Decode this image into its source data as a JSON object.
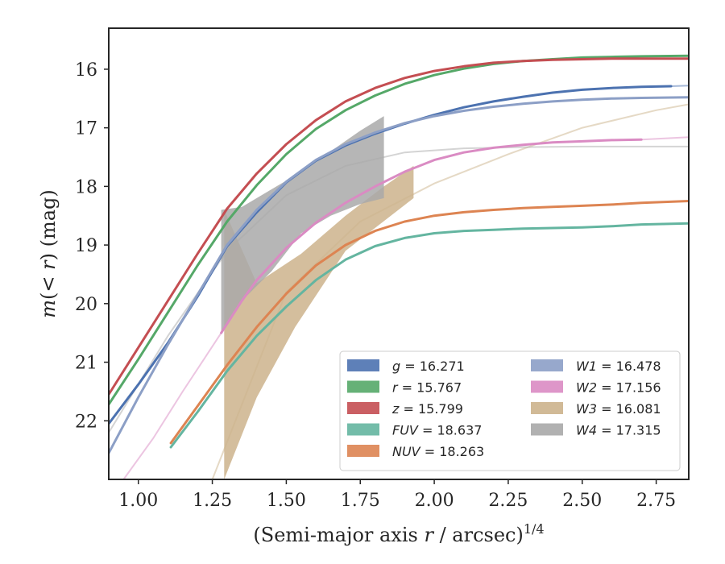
{
  "chart_data": {
    "type": "line",
    "xlabel": "(Semi-major axis r / arcsec)^1/4",
    "xlabel_parts": {
      "main": "(Semi-major axis ",
      "var": "r",
      "rest": " / arcsec)",
      "sup": "1/4"
    },
    "ylabel": "m(< r) (mag)",
    "ylabel_parts": {
      "var": "m",
      "mid": "(< ",
      "var2": "r",
      "rest": ") (mag)"
    },
    "xlim": [
      0.9,
      2.86
    ],
    "ylim": [
      23.0,
      15.3
    ],
    "y_inverted": true,
    "xticks": [
      1.0,
      1.25,
      1.5,
      1.75,
      2.0,
      2.25,
      2.5,
      2.75
    ],
    "xtick_labels": [
      "1.00",
      "1.25",
      "1.50",
      "1.75",
      "2.00",
      "2.25",
      "2.50",
      "2.75"
    ],
    "yticks": [
      16,
      17,
      18,
      19,
      20,
      21,
      22
    ],
    "ytick_labels": [
      "16",
      "17",
      "18",
      "19",
      "20",
      "21",
      "22"
    ],
    "grid": false,
    "legend_position": "lower-right",
    "series": [
      {
        "name": "g = 16.271",
        "label_var": "g",
        "label_val": " = 16.271",
        "color": "#4c72b0",
        "x": [
          0.9,
          1.0,
          1.1,
          1.2,
          1.3,
          1.4,
          1.5,
          1.6,
          1.7,
          1.8,
          1.9,
          2.0,
          2.1,
          2.2,
          2.3,
          2.4,
          2.5,
          2.6,
          2.7,
          2.8
        ],
        "y": [
          22.05,
          21.38,
          20.67,
          19.88,
          19.02,
          18.44,
          17.93,
          17.56,
          17.3,
          17.1,
          16.93,
          16.78,
          16.65,
          16.55,
          16.47,
          16.4,
          16.35,
          16.32,
          16.3,
          16.29
        ],
        "faint_x": [
          2.8,
          2.86
        ],
        "faint_y": [
          16.29,
          16.28
        ]
      },
      {
        "name": "r = 15.767",
        "label_var": "r",
        "label_val": " = 15.767",
        "color": "#55a868",
        "x": [
          0.9,
          1.0,
          1.1,
          1.2,
          1.3,
          1.4,
          1.5,
          1.6,
          1.7,
          1.8,
          1.9,
          2.0,
          2.1,
          2.2,
          2.3,
          2.4,
          2.5,
          2.6,
          2.7,
          2.86
        ],
        "y": [
          21.72,
          20.95,
          20.15,
          19.35,
          18.6,
          17.98,
          17.45,
          17.02,
          16.7,
          16.45,
          16.25,
          16.1,
          15.99,
          15.91,
          15.86,
          15.83,
          15.8,
          15.79,
          15.78,
          15.77
        ]
      },
      {
        "name": "z = 15.799",
        "label_var": "z",
        "label_val": " = 15.799",
        "color": "#c44e52",
        "x": [
          0.9,
          1.0,
          1.1,
          1.2,
          1.3,
          1.4,
          1.5,
          1.6,
          1.7,
          1.8,
          1.9,
          2.0,
          2.1,
          2.2,
          2.3,
          2.4,
          2.5,
          2.6,
          2.7,
          2.86
        ],
        "y": [
          21.55,
          20.75,
          19.95,
          19.15,
          18.38,
          17.78,
          17.28,
          16.87,
          16.55,
          16.32,
          16.15,
          16.03,
          15.95,
          15.89,
          15.86,
          15.84,
          15.83,
          15.82,
          15.82,
          15.82
        ]
      },
      {
        "name": "FUV = 18.637",
        "label_var": "FUV",
        "label_val": " = 18.637",
        "color": "#64b5a0",
        "x": [
          1.11,
          1.2,
          1.3,
          1.4,
          1.5,
          1.6,
          1.7,
          1.8,
          1.9,
          2.0,
          2.1,
          2.2,
          2.3,
          2.4,
          2.5,
          2.6,
          2.7,
          2.86
        ],
        "y": [
          22.45,
          21.85,
          21.15,
          20.55,
          20.05,
          19.6,
          19.25,
          19.02,
          18.88,
          18.8,
          18.76,
          18.74,
          18.72,
          18.71,
          18.7,
          18.68,
          18.65,
          18.63
        ]
      },
      {
        "name": "NUV = 18.263",
        "label_var": "NUV",
        "label_val": " = 18.263",
        "color": "#dd8452",
        "x": [
          1.11,
          1.2,
          1.3,
          1.4,
          1.5,
          1.6,
          1.7,
          1.8,
          1.9,
          2.0,
          2.1,
          2.2,
          2.3,
          2.4,
          2.5,
          2.6,
          2.7,
          2.86
        ],
        "y": [
          22.38,
          21.75,
          21.05,
          20.4,
          19.83,
          19.35,
          19.0,
          18.76,
          18.6,
          18.5,
          18.44,
          18.4,
          18.37,
          18.35,
          18.33,
          18.31,
          18.28,
          18.25
        ]
      },
      {
        "name": "W1 = 16.478",
        "label_var": "W1",
        "label_val": " = 16.478",
        "color": "#8c9fc6",
        "x": [
          0.9,
          1.0,
          1.1,
          1.2,
          1.3,
          1.4,
          1.5,
          1.6,
          1.7,
          1.8,
          1.9,
          2.0,
          2.1,
          2.2,
          2.3,
          2.4,
          2.5,
          2.6,
          2.7,
          2.86
        ],
        "y": [
          22.55,
          21.6,
          20.7,
          19.85,
          19.0,
          18.4,
          17.92,
          17.55,
          17.28,
          17.08,
          16.92,
          16.8,
          16.71,
          16.64,
          16.59,
          16.55,
          16.52,
          16.5,
          16.49,
          16.48
        ]
      },
      {
        "name": "W2 = 17.156",
        "label_var": "W2",
        "label_val": " = 17.156",
        "color": "#da8bc3",
        "x": [
          1.28,
          1.35,
          1.4,
          1.5,
          1.6,
          1.7,
          1.8,
          1.9,
          2.0,
          2.1,
          2.2,
          2.3,
          2.4,
          2.5,
          2.6,
          2.7
        ],
        "y": [
          20.5,
          19.95,
          19.6,
          19.05,
          18.62,
          18.28,
          18.0,
          17.75,
          17.55,
          17.42,
          17.34,
          17.29,
          17.25,
          17.23,
          17.21,
          17.2
        ],
        "faint_x": [
          0.95,
          1.05,
          1.15,
          1.28
        ],
        "faint_y": [
          23.0,
          22.3,
          21.5,
          20.5
        ],
        "faint2_x": [
          2.7,
          2.86
        ],
        "faint2_y": [
          17.2,
          17.16
        ]
      },
      {
        "name": "W3 = 16.081",
        "label_var": "W3",
        "label_val": " = 16.081",
        "color": "#ccb38c",
        "band_x": [
          1.29,
          1.29,
          1.4,
          1.53,
          1.7,
          1.93,
          1.93,
          1.83,
          1.7,
          1.55,
          1.4
        ],
        "band_y": [
          18.4,
          23.0,
          21.6,
          20.4,
          19.1,
          18.2,
          17.65,
          18.0,
          18.5,
          19.15,
          19.65
        ],
        "faint_x": [
          1.25,
          1.5,
          1.75,
          2.0,
          2.25,
          2.5,
          2.75,
          2.86
        ],
        "faint_y": [
          23.0,
          19.8,
          18.6,
          17.95,
          17.45,
          17.0,
          16.7,
          16.6
        ]
      },
      {
        "name": "W4 = 17.315",
        "label_var": "W4",
        "label_val": " = 17.315",
        "color": "#a9a9a9",
        "band_x": [
          1.28,
          1.35,
          1.45,
          1.55,
          1.65,
          1.75,
          1.83,
          1.83,
          1.75,
          1.65,
          1.55,
          1.45,
          1.35,
          1.28
        ],
        "band_y": [
          20.5,
          19.95,
          19.45,
          18.8,
          18.5,
          18.3,
          18.2,
          16.8,
          17.05,
          17.4,
          17.75,
          18.05,
          18.35,
          18.4
        ],
        "faint_x": [
          0.9,
          1.1,
          1.3,
          1.5,
          1.7,
          1.9,
          2.1,
          2.3,
          2.5,
          2.7,
          2.86
        ],
        "faint_y": [
          22.2,
          20.55,
          19.1,
          18.15,
          17.65,
          17.42,
          17.35,
          17.33,
          17.32,
          17.32,
          17.32
        ]
      }
    ]
  }
}
